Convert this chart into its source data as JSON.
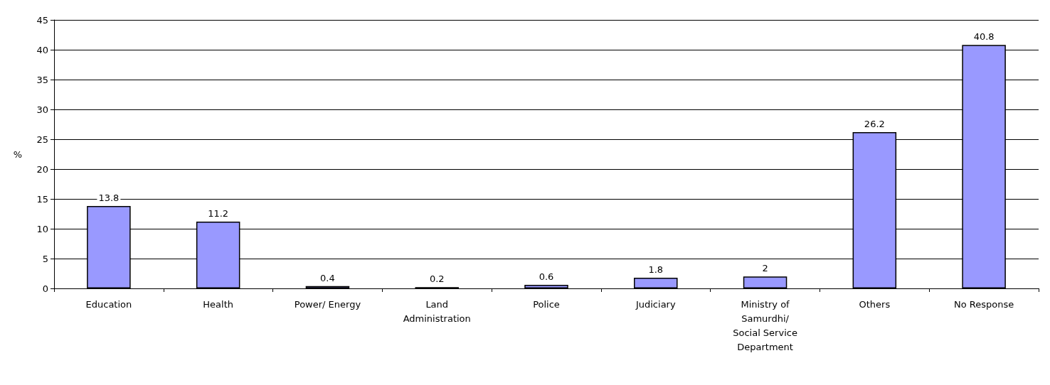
{
  "chart_data": {
    "type": "bar",
    "ylabel": "%",
    "categories": [
      "Education",
      "Health",
      "Power/ Energy",
      "Land\nAdministration",
      "Police",
      "Judiciary",
      "Ministry of\nSamurdhi/\nSocial Service\nDepartment",
      "Others",
      "No Response"
    ],
    "values": [
      13.8,
      11.2,
      0.4,
      0.2,
      0.6,
      1.8,
      2,
      26.2,
      40.8
    ],
    "color": "#9999ff",
    "ylim": [
      0,
      45
    ],
    "yticks": [
      0,
      5,
      10,
      15,
      20,
      25,
      30,
      35,
      40,
      45
    ],
    "grid": "y",
    "data_labels": true
  }
}
